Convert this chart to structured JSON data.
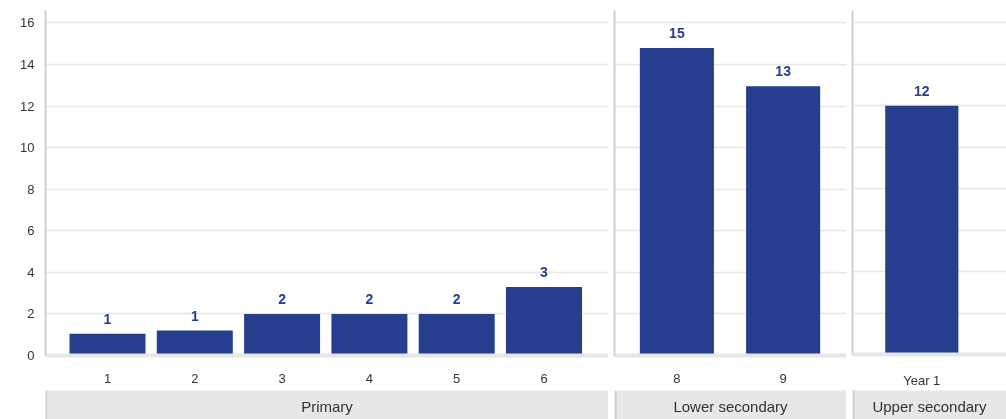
{
  "chart_data": [
    {
      "type": "bar",
      "categories": [
        "1",
        "2",
        "3",
        "4",
        "5",
        "6"
      ],
      "values": [
        1.05,
        1.2,
        2.0,
        2.0,
        2.0,
        3.3
      ],
      "value_labels": [
        "1",
        "1",
        "2",
        "2",
        "2",
        "3"
      ],
      "color": "#253e8d",
      "xlabel": "Primary",
      "ylim": [
        0,
        16.6
      ],
      "yticks": [
        0,
        2,
        4,
        6,
        8,
        10,
        12,
        14,
        16
      ],
      "grid": "y"
    },
    {
      "type": "bar",
      "categories": [
        "8",
        "9"
      ],
      "values": [
        14.8,
        12.95
      ],
      "value_labels": [
        "15",
        "13"
      ],
      "color": "#253e8d",
      "xlabel": "Lower secondary",
      "ylim": [
        0,
        16.6
      ],
      "yticks": [
        0,
        2,
        4,
        6,
        8,
        10,
        12,
        14,
        16
      ],
      "grid": "y",
      "tick_labels": "x"
    },
    {
      "type": "bar",
      "categories": [
        "Year 1"
      ],
      "values": [
        12.0
      ],
      "value_labels": [
        "12"
      ],
      "color": "#253e8d",
      "xlabel": "Upper secondary",
      "ylim": [
        0,
        16.6
      ],
      "yticks": [
        0,
        2,
        4,
        6,
        8,
        10,
        12,
        14,
        16
      ],
      "grid": "y",
      "tick_labels": "x"
    }
  ]
}
